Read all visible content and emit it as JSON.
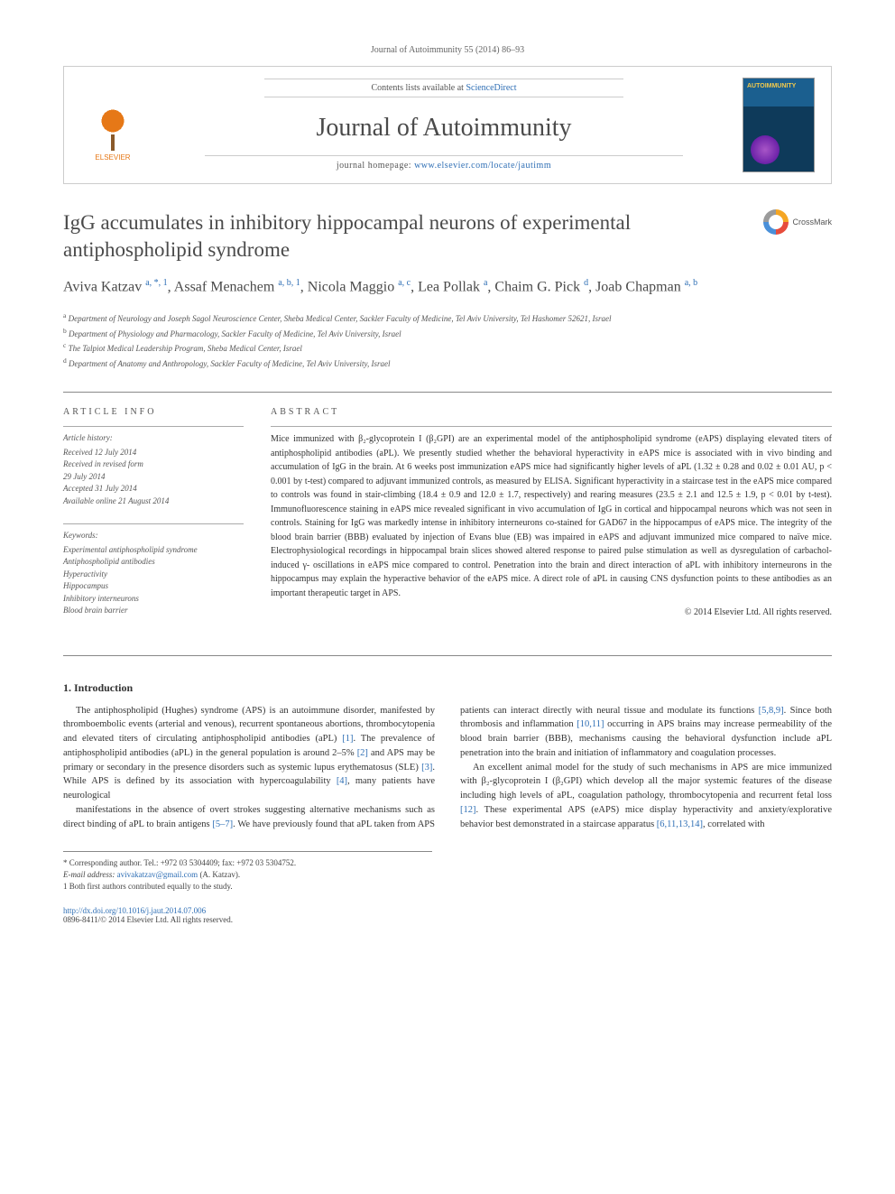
{
  "header": {
    "citation": "Journal of Autoimmunity 55 (2014) 86–93",
    "contents_prefix": "Contents lists available at ",
    "contents_link": "ScienceDirect",
    "journal_name": "Journal of Autoimmunity",
    "homepage_prefix": "journal homepage: ",
    "homepage_url": "www.elsevier.com/locate/jautimm",
    "publisher": "ELSEVIER"
  },
  "crossmark_label": "CrossMark",
  "title": "IgG accumulates in inhibitory hippocampal neurons of experimental antiphospholipid syndrome",
  "authors_html": "Aviva Katzav <sup>a, *, 1</sup>, Assaf Menachem <sup>a, b, 1</sup>, Nicola Maggio <sup>a, c</sup>, Lea Pollak <sup>a</sup>, Chaim G. Pick <sup>d</sup>, Joab Chapman <sup>a, b</sup>",
  "affiliations": [
    "a Department of Neurology and Joseph Sagol Neuroscience Center, Sheba Medical Center, Sackler Faculty of Medicine, Tel Aviv University, Tel Hashomer 52621, Israel",
    "b Department of Physiology and Pharmacology, Sackler Faculty of Medicine, Tel Aviv University, Israel",
    "c The Talpiot Medical Leadership Program, Sheba Medical Center, Israel",
    "d Department of Anatomy and Anthropology, Sackler Faculty of Medicine, Tel Aviv University, Israel"
  ],
  "info": {
    "heading": "ARTICLE INFO",
    "history_label": "Article history:",
    "history": [
      "Received 12 July 2014",
      "Received in revised form",
      "29 July 2014",
      "Accepted 31 July 2014",
      "Available online 21 August 2014"
    ],
    "keywords_label": "Keywords:",
    "keywords": [
      "Experimental antiphospholipid syndrome",
      "Antiphospholipid antibodies",
      "Hyperactivity",
      "Hippocampus",
      "Inhibitory interneurons",
      "Blood brain barrier"
    ]
  },
  "abstract": {
    "heading": "ABSTRACT",
    "text": "Mice immunized with β₂-glycoprotein I (β₂GPI) are an experimental model of the antiphospholipid syndrome (eAPS) displaying elevated titers of antiphospholipid antibodies (aPL). We presently studied whether the behavioral hyperactivity in eAPS mice is associated with in vivo binding and accumulation of IgG in the brain. At 6 weeks post immunization eAPS mice had significantly higher levels of aPL (1.32 ± 0.28 and 0.02 ± 0.01 AU, p < 0.001 by t-test) compared to adjuvant immunized controls, as measured by ELISA. Significant hyperactivity in a staircase test in the eAPS mice compared to controls was found in stair-climbing (18.4 ± 0.9 and 12.0 ± 1.7, respectively) and rearing measures (23.5 ± 2.1 and 12.5 ± 1.9, p < 0.01 by t-test). Immunofluorescence staining in eAPS mice revealed significant in vivo accumulation of IgG in cortical and hippocampal neurons which was not seen in controls. Staining for IgG was markedly intense in inhibitory interneurons co-stained for GAD67 in the hippocampus of eAPS mice. The integrity of the blood brain barrier (BBB) evaluated by injection of Evans blue (EB) was impaired in eAPS and adjuvant immunized mice compared to naïve mice. Electrophysiological recordings in hippocampal brain slices showed altered response to paired pulse stimulation as well as dysregulation of carbachol-induced γ- oscillations in eAPS mice compared to control. Penetration into the brain and direct interaction of aPL with inhibitory interneurons in the hippocampus may explain the hyperactive behavior of the eAPS mice. A direct role of aPL in causing CNS dysfunction points to these antibodies as an important therapeutic target in APS.",
    "copyright": "© 2014 Elsevier Ltd. All rights reserved."
  },
  "intro": {
    "heading": "1. Introduction",
    "p1": "The antiphospholipid (Hughes) syndrome (APS) is an autoimmune disorder, manifested by thromboembolic events (arterial and venous), recurrent spontaneous abortions, thrombocytopenia and elevated titers of circulating antiphospholipid antibodies (aPL) [1]. The prevalence of antiphospholipid antibodies (aPL) in the general population is around 2–5% [2] and APS may be primary or secondary in the presence disorders such as systemic lupus erythematosus (SLE) [3]. While APS is defined by its association with hypercoagulability [4], many patients have neurological",
    "p2": "manifestations in the absence of overt strokes suggesting alternative mechanisms such as direct binding of aPL to brain antigens [5–7]. We have previously found that aPL taken from APS patients can interact directly with neural tissue and modulate its functions [5,8,9]. Since both thrombosis and inflammation [10,11] occurring in APS brains may increase permeability of the blood brain barrier (BBB), mechanisms causing the behavioral dysfunction include aPL penetration into the brain and initiation of inflammatory and coagulation processes.",
    "p3": "An excellent animal model for the study of such mechanisms in APS are mice immunized with β₂-glycoprotein I (β₂GPI) which develop all the major systemic features of the disease including high levels of aPL, coagulation pathology, thrombocytopenia and recurrent fetal loss [12]. These experimental APS (eAPS) mice display hyperactivity and anxiety/explorative behavior best demonstrated in a staircase apparatus [6,11,13,14], correlated with"
  },
  "footnotes": {
    "corresponding": "* Corresponding author. Tel.: +972 03 5304409; fax: +972 03 5304752.",
    "email_label": "E-mail address: ",
    "email": "avivakatzav@gmail.com",
    "email_suffix": " (A. Katzav).",
    "equal": "1 Both first authors contributed equally to the study."
  },
  "footer": {
    "doi": "http://dx.doi.org/10.1016/j.jaut.2014.07.006",
    "issn_copyright": "0896-8411/© 2014 Elsevier Ltd. All rights reserved."
  },
  "colors": {
    "link": "#2f6fb5",
    "elsevier_orange": "#e67817",
    "text": "#333333",
    "muted": "#555555",
    "border": "#cccccc"
  }
}
